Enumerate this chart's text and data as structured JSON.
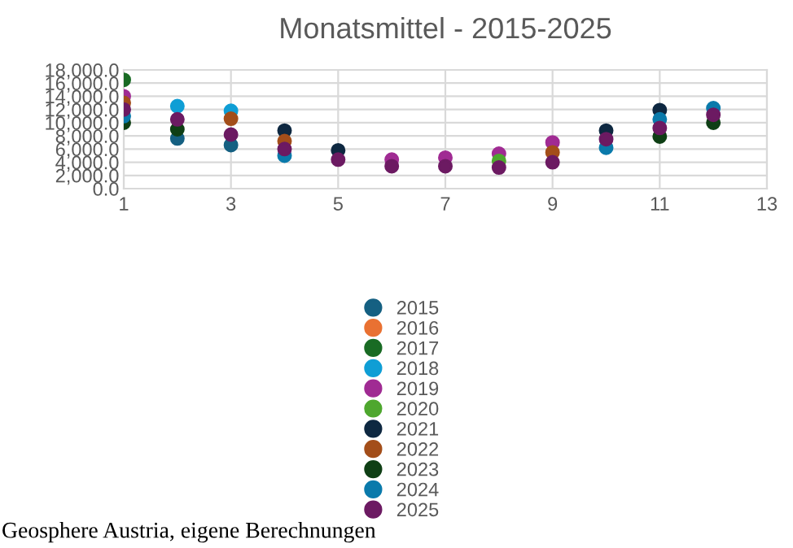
{
  "chart_data": {
    "type": "scatter",
    "title": "Monatsmittel - 2015-2025",
    "x": [
      1,
      2,
      3,
      4,
      5,
      6,
      7,
      8,
      9,
      10,
      11,
      12
    ],
    "series": [
      {
        "name": "2015",
        "color": "#156082",
        "values": [
          null,
          7600,
          6600,
          null,
          null,
          null,
          null,
          null,
          null,
          null,
          null,
          null
        ]
      },
      {
        "name": "2016",
        "color": "#e97132",
        "values": [
          null,
          null,
          null,
          null,
          null,
          null,
          null,
          null,
          null,
          null,
          null,
          null
        ]
      },
      {
        "name": "2017",
        "color": "#196b24",
        "values": [
          16500,
          null,
          null,
          null,
          null,
          null,
          null,
          null,
          null,
          null,
          null,
          null
        ]
      },
      {
        "name": "2018",
        "color": "#0f9ed5",
        "values": [
          null,
          12500,
          11800,
          null,
          null,
          null,
          null,
          null,
          null,
          null,
          null,
          null
        ]
      },
      {
        "name": "2019",
        "color": "#a02b93",
        "values": [
          14000,
          null,
          null,
          null,
          null,
          4400,
          4700,
          5300,
          7000,
          null,
          null,
          null
        ]
      },
      {
        "name": "2020",
        "color": "#4ea72e",
        "values": [
          null,
          null,
          null,
          null,
          null,
          null,
          null,
          4200,
          null,
          null,
          null,
          null
        ]
      },
      {
        "name": "2021",
        "color": "#0e2841",
        "values": [
          null,
          null,
          null,
          8800,
          5800,
          null,
          null,
          null,
          null,
          8800,
          11900,
          null
        ]
      },
      {
        "name": "2022",
        "color": "#a34e1a",
        "values": [
          13000,
          null,
          10600,
          7200,
          null,
          null,
          null,
          null,
          5500,
          null,
          null,
          null
        ]
      },
      {
        "name": "2023",
        "color": "#0f3f15",
        "values": [
          10000,
          9000,
          null,
          null,
          null,
          null,
          null,
          null,
          null,
          null,
          7900,
          10000
        ]
      },
      {
        "name": "2024",
        "color": "#0a7aab",
        "values": [
          11000,
          null,
          null,
          5000,
          null,
          null,
          null,
          null,
          null,
          6200,
          10500,
          12200
        ]
      },
      {
        "name": "2025",
        "color": "#6c1a62",
        "values": [
          12000,
          10500,
          8200,
          6000,
          4400,
          3400,
          3400,
          3200,
          4000,
          7500,
          9200,
          11200
        ]
      }
    ],
    "xlim": [
      1,
      13
    ],
    "xticks": [
      1,
      3,
      5,
      7,
      9,
      11,
      13
    ],
    "ylim": [
      0,
      18000
    ],
    "yticks": [
      {
        "value": 0,
        "label": "0.0"
      },
      {
        "value": 2000,
        "label": "2,000.0"
      },
      {
        "value": 4000,
        "label": "4,000.0"
      },
      {
        "value": 6000,
        "label": "6,000.0"
      },
      {
        "value": 8000,
        "label": "8,000.0"
      },
      {
        "value": 10000,
        "label": "10,000.0"
      },
      {
        "value": 12000,
        "label": "12,000.0"
      },
      {
        "value": 14000,
        "label": "14,000.0"
      },
      {
        "value": 16000,
        "label": "16,000.0"
      },
      {
        "value": 18000,
        "label": "18,000.0"
      }
    ],
    "grid": true,
    "legend": "bottom",
    "marker": "circle",
    "annotations": [
      "Geosphere Austria, eigene Berechnungen"
    ]
  }
}
